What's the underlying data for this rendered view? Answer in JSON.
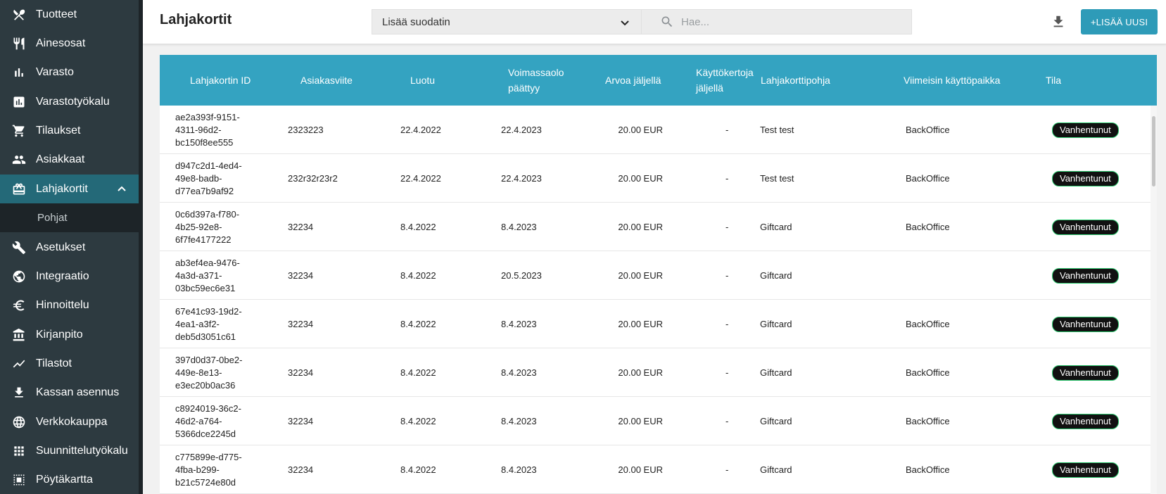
{
  "sidebar": {
    "items": [
      {
        "label": "Tuotteet",
        "icon": "cutlery-icon"
      },
      {
        "label": "Ainesosat",
        "icon": "knife-fork-icon"
      },
      {
        "label": "Varasto",
        "icon": "bar-chart-icon"
      },
      {
        "label": "Varastotyökalu",
        "icon": "chart-box-icon"
      },
      {
        "label": "Tilaukset",
        "icon": "cart-icon"
      },
      {
        "label": "Asiakkaat",
        "icon": "people-icon"
      },
      {
        "label": "Lahjakortit",
        "icon": "gift-card-icon"
      },
      {
        "label": "Asetukset",
        "icon": "wrench-icon"
      },
      {
        "label": "Integraatio",
        "icon": "globe-link-icon"
      },
      {
        "label": "Hinnoittelu",
        "icon": "euro-icon"
      },
      {
        "label": "Kirjanpito",
        "icon": "bank-icon"
      },
      {
        "label": "Tilastot",
        "icon": "trend-line-icon"
      },
      {
        "label": "Kassan asennus",
        "icon": "download-icon"
      },
      {
        "label": "Verkkokauppa",
        "icon": "globe-icon"
      },
      {
        "label": "Suunnittelutyökalu",
        "icon": "grid-icon"
      },
      {
        "label": "Pöytäkartta",
        "icon": "table-map-icon"
      }
    ],
    "active": "Lahjakortit",
    "sub_item": "Pohjat"
  },
  "header": {
    "title": "Lahjakortit",
    "filter_label": "Lisää suodatin",
    "search_placeholder": "Hae...",
    "add_label": "+LISÄÄ UUSI"
  },
  "table": {
    "headers": {
      "id": "Lahjakortin ID",
      "customer_ref": "Asiakasviite",
      "created": "Luotu",
      "valid_line1": "Voimassaolo",
      "valid_line2": "päättyy",
      "value_left": "Arvoa jäljellä",
      "uses_line1": "Käyttökertoja",
      "uses_line2": "jäljellä",
      "template": "Lahjakorttipohja",
      "last_used": "Viimeisin käyttöpaikka",
      "status": "Tila"
    },
    "rows": [
      {
        "id1": "ae2a393f-9151-",
        "id2": "4311-96d2-",
        "id3": "bc150f8ee555",
        "ref": "2323223",
        "created": "22.4.2022",
        "valid": "22.4.2023",
        "value": "20.00 EUR",
        "uses": "-",
        "template": "Test test",
        "last": "BackOffice",
        "status": "Vanhentunut"
      },
      {
        "id1": "d947c2d1-4ed4-",
        "id2": "49e8-badb-",
        "id3": "d77ea7b9af92",
        "ref": "232r32r23r2",
        "created": "22.4.2022",
        "valid": "22.4.2023",
        "value": "20.00 EUR",
        "uses": "-",
        "template": "Test test",
        "last": "BackOffice",
        "status": "Vanhentunut"
      },
      {
        "id1": "0c6d397a-f780-",
        "id2": "4b25-92e8-",
        "id3": "6f7fe4177222",
        "ref": "32234",
        "created": "8.4.2022",
        "valid": "8.4.2023",
        "value": "20.00 EUR",
        "uses": "-",
        "template": "Giftcard",
        "last": "BackOffice",
        "status": "Vanhentunut"
      },
      {
        "id1": "ab3ef4ea-9476-",
        "id2": "4a3d-a371-",
        "id3": "03bc59ec6e31",
        "ref": "32234",
        "created": "8.4.2022",
        "valid": "20.5.2023",
        "value": "20.00 EUR",
        "uses": "-",
        "template": "Giftcard",
        "last": "",
        "status": "Vanhentunut"
      },
      {
        "id1": "67e41c93-19d2-",
        "id2": "4ea1-a3f2-",
        "id3": "deb5d3051c61",
        "ref": "32234",
        "created": "8.4.2022",
        "valid": "8.4.2023",
        "value": "20.00 EUR",
        "uses": "-",
        "template": "Giftcard",
        "last": "BackOffice",
        "status": "Vanhentunut"
      },
      {
        "id1": "397d0d37-0be2-",
        "id2": "449e-8e13-",
        "id3": "e3ec20b0ac36",
        "ref": "32234",
        "created": "8.4.2022",
        "valid": "8.4.2023",
        "value": "20.00 EUR",
        "uses": "-",
        "template": "Giftcard",
        "last": "BackOffice",
        "status": "Vanhentunut"
      },
      {
        "id1": "c8924019-36c2-",
        "id2": "46d2-a764-",
        "id3": "5366dce2245d",
        "ref": "32234",
        "created": "8.4.2022",
        "valid": "8.4.2023",
        "value": "20.00 EUR",
        "uses": "-",
        "template": "Giftcard",
        "last": "BackOffice",
        "status": "Vanhentunut"
      },
      {
        "id1": "c775899e-d775-",
        "id2": "4fba-b299-",
        "id3": "b21c5724e80d",
        "ref": "32234",
        "created": "8.4.2022",
        "valid": "8.4.2023",
        "value": "20.00 EUR",
        "uses": "-",
        "template": "Giftcard",
        "last": "BackOffice",
        "status": "Vanhentunut"
      }
    ]
  },
  "colors": {
    "sidebar_bg": "#2d3a40",
    "sidebar_active": "#246978",
    "table_header": "#34a3c1",
    "accent_button": "#2e9bb8"
  }
}
